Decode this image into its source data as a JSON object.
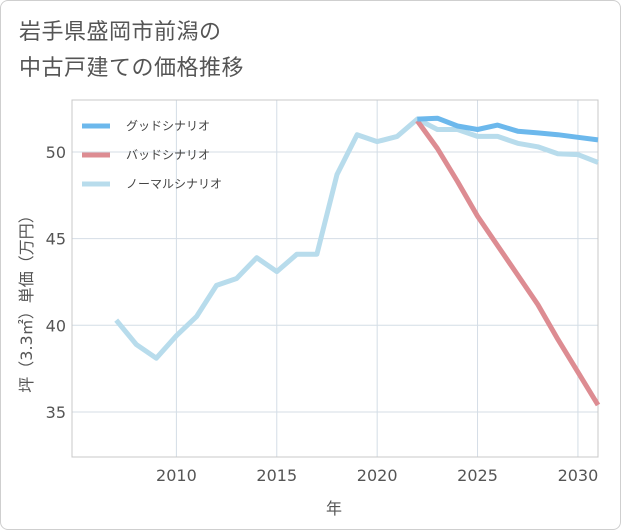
{
  "title": {
    "line1": "岩手県盛岡市前潟の",
    "line2": "中古戸建ての価格推移"
  },
  "chart_data": {
    "type": "line",
    "xlabel": "年",
    "ylabel": "坪（3.3㎡）単価（万円）",
    "xlim": [
      2004.8,
      2031
    ],
    "ylim": [
      32.4,
      53
    ],
    "xticks": [
      2010,
      2015,
      2020,
      2025,
      2030
    ],
    "yticks": [
      35,
      40,
      45,
      50
    ],
    "grid": true,
    "legend_position": "top-left",
    "series": [
      {
        "name": "グッドシナリオ",
        "color": "#6cb8ec",
        "x": [
          2022,
          2023,
          2024,
          2025,
          2026,
          2027,
          2028,
          2029,
          2030,
          2031
        ],
        "values": [
          51.9,
          51.95,
          51.5,
          51.3,
          51.55,
          51.2,
          51.1,
          51.0,
          50.85,
          50.7
        ]
      },
      {
        "name": "バッドシナリオ",
        "color": "#dd8c92",
        "x": [
          2022,
          2023,
          2024,
          2025,
          2026,
          2027,
          2028,
          2029,
          2030,
          2031
        ],
        "values": [
          51.8,
          50.2,
          48.3,
          46.3,
          44.6,
          42.9,
          41.2,
          39.2,
          37.3,
          35.4
        ]
      },
      {
        "name": "ノーマルシナリオ",
        "color": "#b8dcec",
        "x": [
          2007,
          2008,
          2009,
          2010,
          2011,
          2012,
          2013,
          2014,
          2015,
          2016,
          2017,
          2018,
          2019,
          2020,
          2021,
          2022,
          2023,
          2024,
          2025,
          2026,
          2027,
          2028,
          2029,
          2030,
          2031
        ],
        "values": [
          40.3,
          38.9,
          38.1,
          39.4,
          40.5,
          42.3,
          42.7,
          43.9,
          43.1,
          44.1,
          44.1,
          48.7,
          51.0,
          50.6,
          50.9,
          51.9,
          51.3,
          51.3,
          50.9,
          50.9,
          50.5,
          50.3,
          49.9,
          49.85,
          49.4
        ]
      }
    ]
  }
}
